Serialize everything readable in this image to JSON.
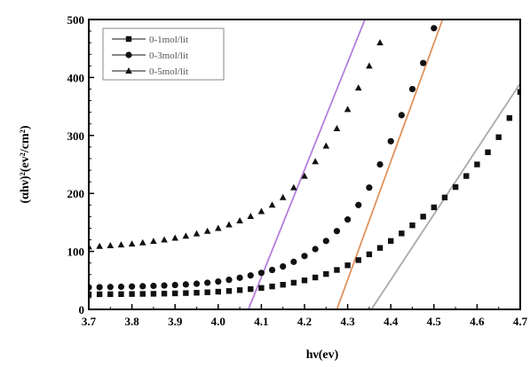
{
  "chart_data": {
    "type": "scatter",
    "xlabel": "hν(ev)",
    "ylabel": "(αhν)²(ev²/cm²)",
    "xlim": [
      3.7,
      4.7
    ],
    "ylim": [
      0,
      500
    ],
    "xticks": [
      "3.7",
      "3.8",
      "3.9",
      "4.0",
      "4.1",
      "4.2",
      "4.3",
      "4.4",
      "4.5",
      "4.6",
      "4.7"
    ],
    "yticks": [
      "0",
      "100",
      "200",
      "300",
      "400",
      "500"
    ],
    "legend_position": "top-left",
    "series": [
      {
        "name": "0-1mol/lit",
        "marker": "square",
        "x": [
          3.7,
          3.725,
          3.75,
          3.775,
          3.8,
          3.825,
          3.85,
          3.875,
          3.9,
          3.925,
          3.95,
          3.975,
          4.0,
          4.025,
          4.05,
          4.075,
          4.1,
          4.125,
          4.15,
          4.175,
          4.2,
          4.225,
          4.25,
          4.275,
          4.3,
          4.325,
          4.35,
          4.375,
          4.4,
          4.425,
          4.45,
          4.475,
          4.5,
          4.525,
          4.55,
          4.575,
          4.6,
          4.625,
          4.65,
          4.675,
          4.7
        ],
        "y": [
          26,
          26.1,
          26.2,
          26.3,
          26.5,
          26.7,
          26.9,
          27.2,
          27.6,
          28.1,
          28.7,
          29.5,
          30.5,
          31.7,
          33.2,
          35,
          37,
          39.5,
          42.5,
          46,
          50,
          55,
          61,
          68,
          76,
          85,
          95,
          106,
          118,
          131,
          145,
          160,
          176,
          193,
          211,
          230,
          250,
          271,
          297,
          330,
          375
        ]
      },
      {
        "name": "0-3mol/lit",
        "marker": "circle",
        "x": [
          3.7,
          3.725,
          3.75,
          3.775,
          3.8,
          3.825,
          3.85,
          3.875,
          3.9,
          3.925,
          3.95,
          3.975,
          4.0,
          4.025,
          4.05,
          4.075,
          4.1,
          4.125,
          4.15,
          4.175,
          4.2,
          4.225,
          4.25,
          4.275,
          4.3,
          4.325,
          4.35,
          4.375,
          4.4,
          4.425,
          4.45,
          4.475,
          4.5
        ],
        "y": [
          38,
          38.3,
          38.6,
          39,
          39.4,
          39.9,
          40.5,
          41.2,
          42,
          43,
          44.3,
          46,
          48,
          51,
          54.5,
          58.5,
          63,
          68,
          74,
          82,
          92,
          104,
          118,
          135,
          155,
          180,
          210,
          250,
          290,
          335,
          380,
          425,
          485
        ]
      },
      {
        "name": "0-5mol/lit",
        "marker": "triangle",
        "x": [
          3.7,
          3.725,
          3.75,
          3.775,
          3.8,
          3.825,
          3.85,
          3.875,
          3.9,
          3.925,
          3.95,
          3.975,
          4.0,
          4.025,
          4.05,
          4.075,
          4.1,
          4.125,
          4.15,
          4.175,
          4.2,
          4.225,
          4.25,
          4.275,
          4.3,
          4.325,
          4.35,
          4.375
        ],
        "y": [
          108,
          109,
          110,
          111.5,
          113,
          115,
          117.5,
          120,
          123,
          126.5,
          130.5,
          135,
          140,
          146,
          153,
          160.5,
          169,
          180,
          193,
          210,
          230,
          255,
          282,
          312,
          345,
          382,
          420,
          460
        ]
      }
    ],
    "fit_lines": [
      {
        "color": "#b57edc",
        "x": [
          4.07,
          4.34
        ],
        "y": [
          0,
          500
        ]
      },
      {
        "color": "#e0915c",
        "x": [
          4.275,
          4.52
        ],
        "y": [
          0,
          500
        ]
      },
      {
        "color": "#a9a9a9",
        "x": [
          4.355,
          4.7
        ],
        "y": [
          0,
          390
        ]
      }
    ]
  }
}
